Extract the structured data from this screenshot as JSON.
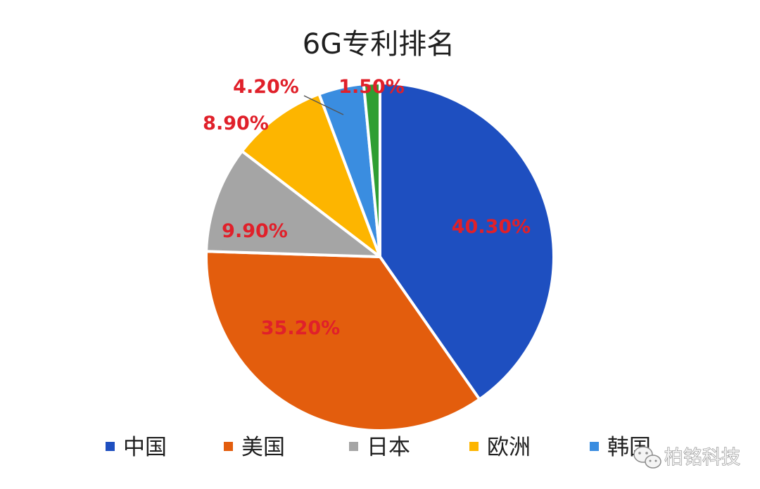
{
  "chart_data": {
    "type": "pie",
    "title": "6G专利排名",
    "categories": [
      "中国",
      "美国",
      "日本",
      "欧洲",
      "韩国",
      ""
    ],
    "values": [
      40.3,
      35.2,
      9.9,
      8.9,
      4.2,
      1.5
    ],
    "labels": [
      "40.30%",
      "35.20%",
      "9.90%",
      "8.90%",
      "4.20%",
      "1.50%"
    ],
    "colors": [
      "#1e4fc0",
      "#e35d0d",
      "#a5a5a5",
      "#fdb500",
      "#3a8de0",
      "#2f9e33"
    ],
    "legend": [
      "中国",
      "美国",
      "日本",
      "欧洲",
      "韩国"
    ],
    "legend_position": "bottom",
    "start": "12 o'clock",
    "direction": "clockwise"
  },
  "watermark": {
    "text": "柏铭科技",
    "icon": "wechat-icon"
  }
}
